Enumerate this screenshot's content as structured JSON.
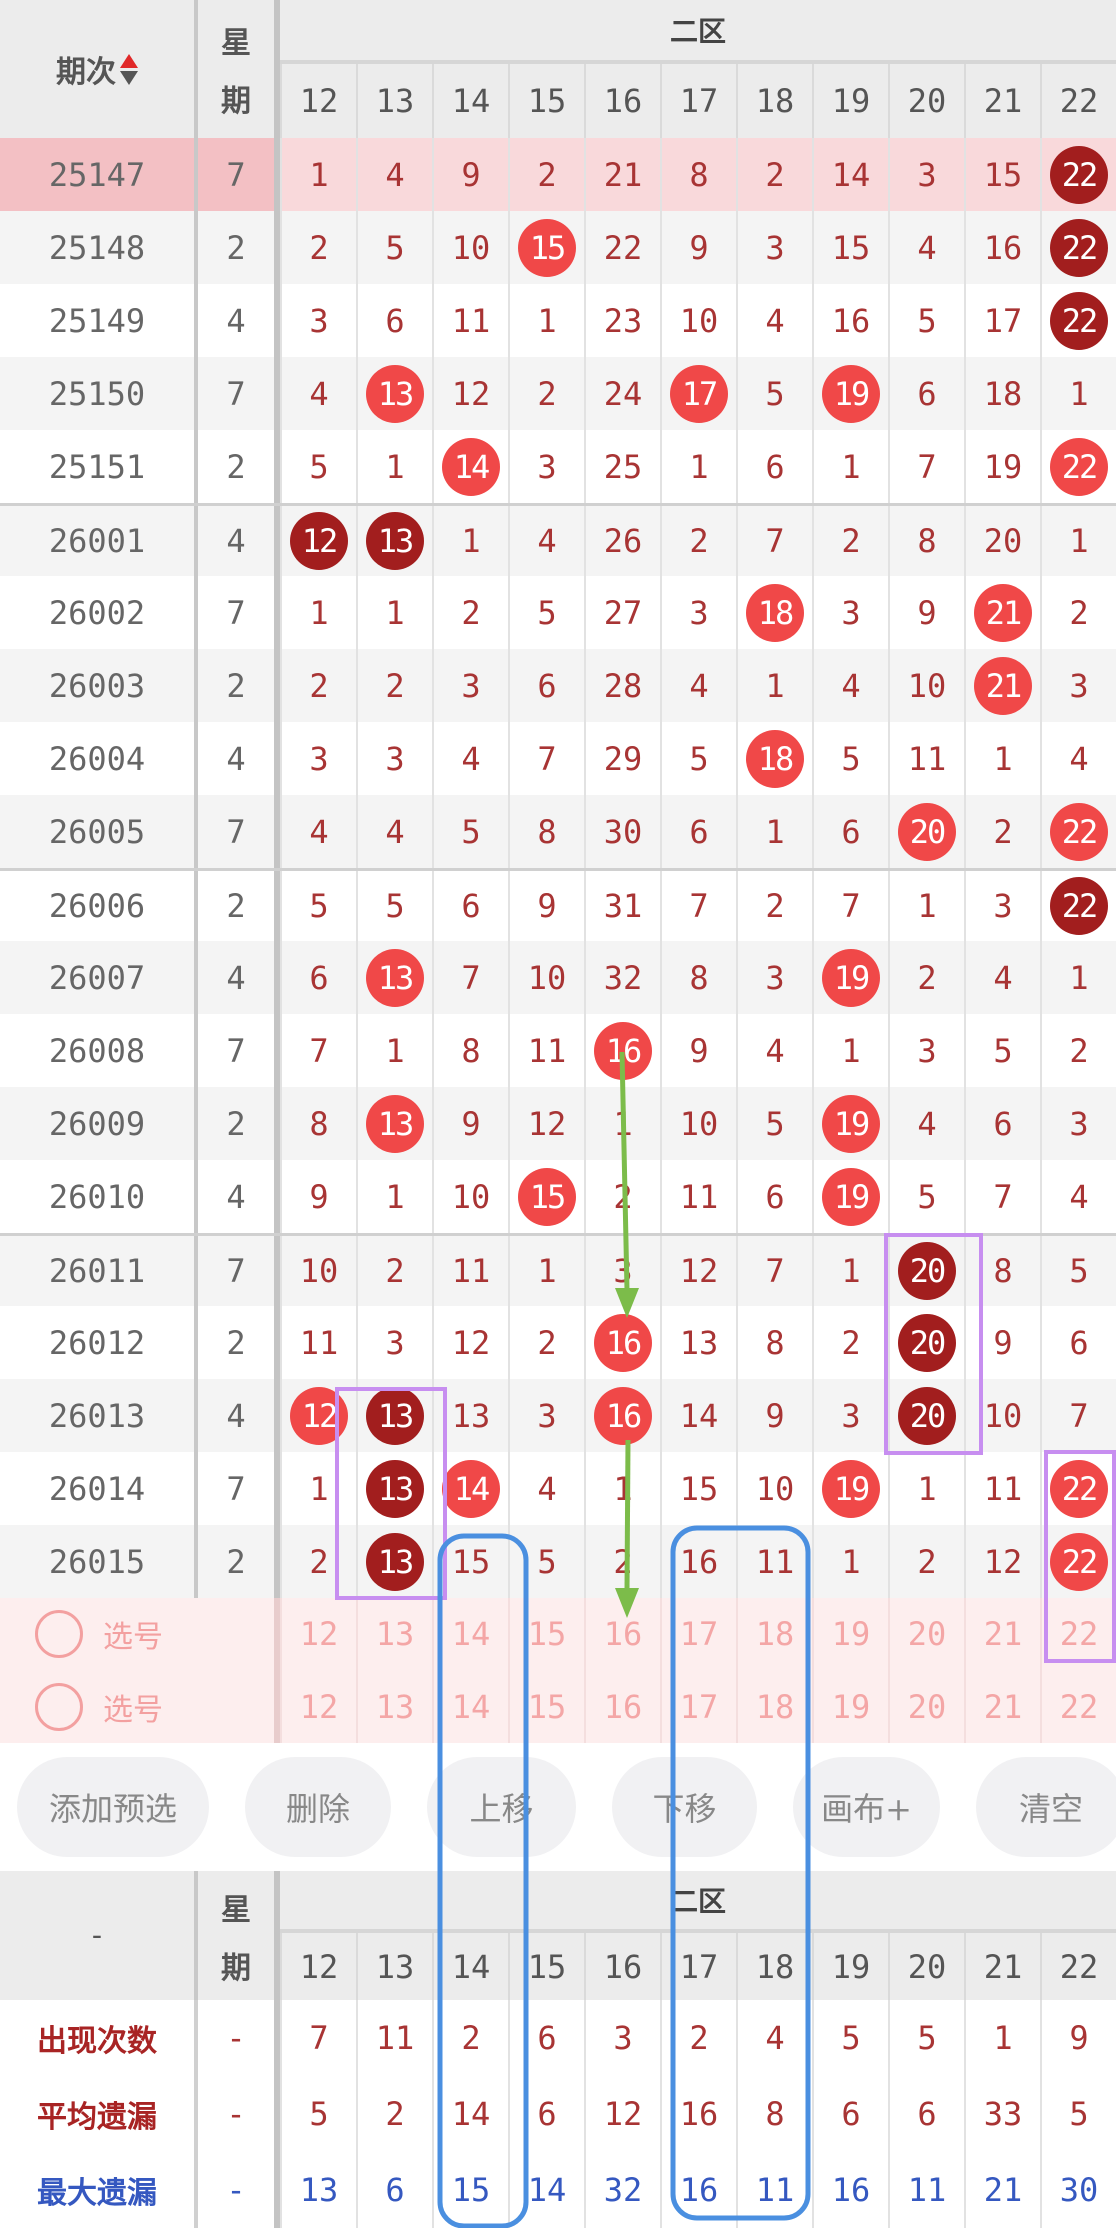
{
  "header": {
    "period_label": "期次",
    "weekday_label": [
      "星",
      "期"
    ],
    "zone_label": "二区",
    "columns": [
      "12",
      "13",
      "14",
      "15",
      "16",
      "17",
      "18",
      "19",
      "20",
      "21",
      "22"
    ],
    "sort_icon": "sort-up-down-icon"
  },
  "rows": [
    {
      "period": "25147",
      "weekday": "7",
      "values": [
        1,
        4,
        9,
        2,
        21,
        8,
        2,
        14,
        3,
        15,
        22
      ],
      "dark": [
        22
      ],
      "highlighted": true
    },
    {
      "period": "25148",
      "weekday": "2",
      "values": [
        2,
        5,
        10,
        15,
        22,
        9,
        3,
        15,
        4,
        16,
        22
      ],
      "dark": [
        22
      ]
    },
    {
      "period": "25149",
      "weekday": "4",
      "values": [
        3,
        6,
        11,
        1,
        23,
        10,
        4,
        16,
        5,
        17,
        22
      ],
      "dark": [
        22
      ]
    },
    {
      "period": "25150",
      "weekday": "7",
      "values": [
        4,
        13,
        12,
        2,
        24,
        17,
        5,
        19,
        6,
        18,
        1
      ],
      "dark": []
    },
    {
      "period": "25151",
      "weekday": "2",
      "values": [
        5,
        1,
        14,
        3,
        25,
        1,
        6,
        1,
        7,
        19,
        22
      ],
      "dark": []
    },
    {
      "period": "26001",
      "weekday": "4",
      "values": [
        12,
        13,
        1,
        4,
        26,
        2,
        7,
        2,
        8,
        20,
        1
      ],
      "dark": [
        12,
        13
      ]
    },
    {
      "period": "26002",
      "weekday": "7",
      "values": [
        1,
        1,
        2,
        5,
        27,
        3,
        18,
        3,
        9,
        21,
        2
      ],
      "dark": []
    },
    {
      "period": "26003",
      "weekday": "2",
      "values": [
        2,
        2,
        3,
        6,
        28,
        4,
        1,
        4,
        10,
        21,
        3
      ],
      "dark": []
    },
    {
      "period": "26004",
      "weekday": "4",
      "values": [
        3,
        3,
        4,
        7,
        29,
        5,
        18,
        5,
        11,
        1,
        4
      ],
      "dark": []
    },
    {
      "period": "26005",
      "weekday": "7",
      "values": [
        4,
        4,
        5,
        8,
        30,
        6,
        1,
        6,
        20,
        2,
        22
      ],
      "dark": []
    },
    {
      "period": "26006",
      "weekday": "2",
      "values": [
        5,
        5,
        6,
        9,
        31,
        7,
        2,
        7,
        1,
        3,
        22
      ],
      "dark": [
        22
      ]
    },
    {
      "period": "26007",
      "weekday": "4",
      "values": [
        6,
        13,
        7,
        10,
        32,
        8,
        3,
        19,
        2,
        4,
        1
      ],
      "dark": []
    },
    {
      "period": "26008",
      "weekday": "7",
      "values": [
        7,
        1,
        8,
        11,
        16,
        9,
        4,
        1,
        3,
        5,
        2
      ],
      "dark": []
    },
    {
      "period": "26009",
      "weekday": "2",
      "values": [
        8,
        13,
        9,
        12,
        1,
        10,
        5,
        19,
        4,
        6,
        3
      ],
      "dark": []
    },
    {
      "period": "26010",
      "weekday": "4",
      "values": [
        9,
        1,
        10,
        15,
        2,
        11,
        6,
        19,
        5,
        7,
        4
      ],
      "dark": []
    },
    {
      "period": "26011",
      "weekday": "7",
      "values": [
        10,
        2,
        11,
        1,
        3,
        12,
        7,
        1,
        20,
        8,
        5
      ],
      "dark": [
        20
      ]
    },
    {
      "period": "26012",
      "weekday": "2",
      "values": [
        11,
        3,
        12,
        2,
        16,
        13,
        8,
        2,
        20,
        9,
        6
      ],
      "dark": [
        20
      ]
    },
    {
      "period": "26013",
      "weekday": "4",
      "values": [
        12,
        13,
        13,
        3,
        16,
        14,
        9,
        3,
        20,
        10,
        7
      ],
      "dark": [
        13,
        20
      ]
    },
    {
      "period": "26014",
      "weekday": "7",
      "values": [
        1,
        13,
        14,
        4,
        1,
        15,
        10,
        19,
        1,
        11,
        22
      ],
      "dark": [
        13
      ]
    },
    {
      "period": "26015",
      "weekday": "2",
      "values": [
        2,
        13,
        15,
        5,
        2,
        16,
        11,
        1,
        2,
        12,
        22
      ],
      "dark": [
        13
      ]
    }
  ],
  "selection_rows": [
    {
      "label": "选号",
      "numbers": [
        "12",
        "13",
        "14",
        "15",
        "16",
        "17",
        "18",
        "19",
        "20",
        "21",
        "22"
      ]
    },
    {
      "label": "选号",
      "numbers": [
        "12",
        "13",
        "14",
        "15",
        "16",
        "17",
        "18",
        "19",
        "20",
        "21",
        "22"
      ]
    }
  ],
  "buttons": [
    "添加预选",
    "删除",
    "上移",
    "下移",
    "画布+",
    "清空"
  ],
  "footer_header": {
    "left_label": "-",
    "weekday_label": [
      "星",
      "期"
    ],
    "zone_label": "二区",
    "columns": [
      "12",
      "13",
      "14",
      "15",
      "16",
      "17",
      "18",
      "19",
      "20",
      "21",
      "22"
    ]
  },
  "stats": [
    {
      "label": "出现次数",
      "weekday": "-",
      "values": [
        "7",
        "11",
        "2",
        "6",
        "3",
        "2",
        "4",
        "5",
        "5",
        "1",
        "9"
      ]
    },
    {
      "label": "平均遗漏",
      "weekday": "-",
      "values": [
        "5",
        "2",
        "14",
        "6",
        "12",
        "16",
        "8",
        "6",
        "6",
        "33",
        "5"
      ]
    },
    {
      "label": "最大遗漏",
      "weekday": "-",
      "values": [
        "13",
        "6",
        "15",
        "14",
        "32",
        "16",
        "11",
        "16",
        "11",
        "21",
        "30"
      ]
    }
  ],
  "colors": {
    "hit_ball": "#f04848",
    "consecutive_ball": "#a21e1e",
    "annotation_purple": "#c78ef0",
    "annotation_blue": "#4a8fe0",
    "annotation_green": "#7cbc4a"
  }
}
